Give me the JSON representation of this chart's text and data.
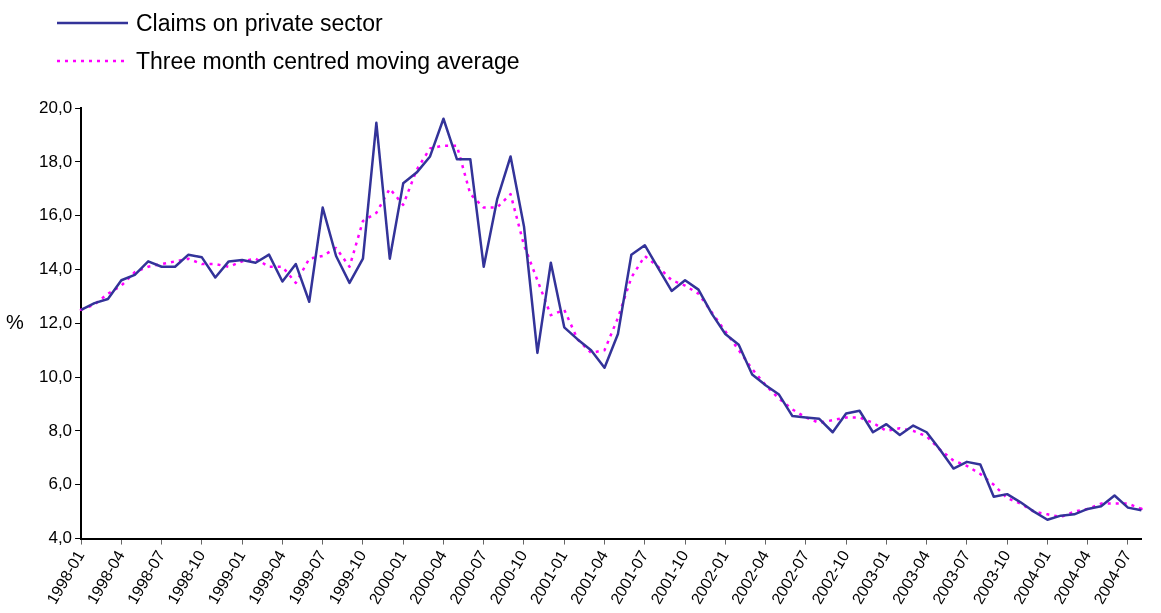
{
  "chart_data": {
    "type": "line",
    "ylabel": "%",
    "categories": [
      "1998-01",
      null,
      null,
      "1998-04",
      null,
      null,
      "1998-07",
      null,
      null,
      "1998-10",
      null,
      null,
      "1999-01",
      null,
      null,
      "1999-04",
      null,
      null,
      "1999-07",
      null,
      null,
      "1999-10",
      null,
      null,
      "2000-01",
      null,
      null,
      "2000-04",
      null,
      null,
      "2000-07",
      null,
      null,
      "2000-10",
      null,
      null,
      "2001-01",
      null,
      null,
      "2001-04",
      null,
      null,
      "2001-07",
      null,
      null,
      "2001-10",
      null,
      null,
      "2002-01",
      null,
      null,
      "2002-04",
      null,
      null,
      "2002-07",
      null,
      null,
      "2002-10",
      null,
      null,
      "2003-01",
      null,
      null,
      "2003-04",
      null,
      null,
      "2003-07",
      null,
      null,
      "2003-10",
      null,
      null,
      "2004-01",
      null,
      null,
      "2004-04",
      null,
      null,
      "2004-07",
      null
    ],
    "series": [
      {
        "name": "Claims on private sector",
        "color": "#333399",
        "line_style": "solid",
        "values": [
          12.5,
          12.75,
          12.9,
          13.6,
          13.8,
          14.3,
          14.1,
          14.1,
          14.55,
          14.45,
          13.7,
          14.3,
          14.35,
          14.25,
          14.55,
          13.55,
          14.2,
          12.8,
          16.3,
          14.5,
          13.5,
          14.4,
          19.45,
          14.4,
          17.2,
          17.6,
          18.2,
          19.6,
          18.1,
          18.1,
          14.1,
          16.6,
          18.2,
          15.6,
          10.9,
          14.25,
          11.85,
          11.4,
          11.0,
          10.35,
          11.6,
          14.55,
          14.9,
          14.05,
          13.2,
          13.6,
          13.25,
          12.35,
          11.6,
          11.2,
          10.1,
          9.7,
          9.35,
          8.55,
          8.5,
          8.45,
          7.95,
          8.65,
          8.75,
          7.95,
          8.25,
          7.85,
          8.2,
          7.95,
          7.3,
          6.6,
          6.85,
          6.75,
          5.55,
          5.65,
          5.35,
          5.0,
          4.7,
          4.85,
          4.9,
          5.1,
          5.2,
          5.6,
          5.15,
          5.05
        ]
      },
      {
        "name": "Three month centred moving average",
        "color": "#ff00ff",
        "line_style": "dotted",
        "values": [
          12.5,
          12.7,
          13.1,
          13.4,
          13.9,
          14.1,
          14.2,
          14.3,
          14.4,
          14.2,
          14.2,
          14.1,
          14.3,
          14.4,
          14.1,
          14.1,
          13.5,
          14.4,
          14.5,
          14.8,
          14.1,
          15.8,
          16.1,
          17.0,
          16.4,
          17.7,
          18.5,
          18.6,
          18.6,
          16.8,
          16.3,
          16.3,
          16.8,
          14.9,
          13.6,
          12.3,
          12.5,
          11.4,
          10.9,
          11.0,
          12.2,
          13.7,
          14.5,
          14.1,
          13.6,
          13.4,
          13.1,
          12.4,
          11.7,
          11.0,
          10.3,
          9.7,
          9.2,
          8.8,
          8.5,
          8.3,
          8.4,
          8.5,
          8.5,
          8.3,
          8.0,
          8.1,
          8.0,
          7.8,
          7.3,
          6.9,
          6.7,
          6.4,
          6.0,
          5.5,
          5.3,
          5.0,
          4.9,
          4.8,
          5.0,
          5.1,
          5.3,
          5.3,
          5.3,
          5.1
        ]
      }
    ],
    "ylim": [
      4,
      20
    ],
    "yticks": [
      {
        "value": 4,
        "label": "4,0"
      },
      {
        "value": 6,
        "label": "6,0"
      },
      {
        "value": 8,
        "label": "8,0"
      },
      {
        "value": 10,
        "label": "10,0"
      },
      {
        "value": 12,
        "label": "12,0"
      },
      {
        "value": 14,
        "label": "14,0"
      },
      {
        "value": 16,
        "label": "16,0"
      },
      {
        "value": 18,
        "label": "18,0"
      },
      {
        "value": 20,
        "label": "20,0"
      }
    ],
    "grid": false,
    "legend": "top left",
    "marker": "none"
  }
}
